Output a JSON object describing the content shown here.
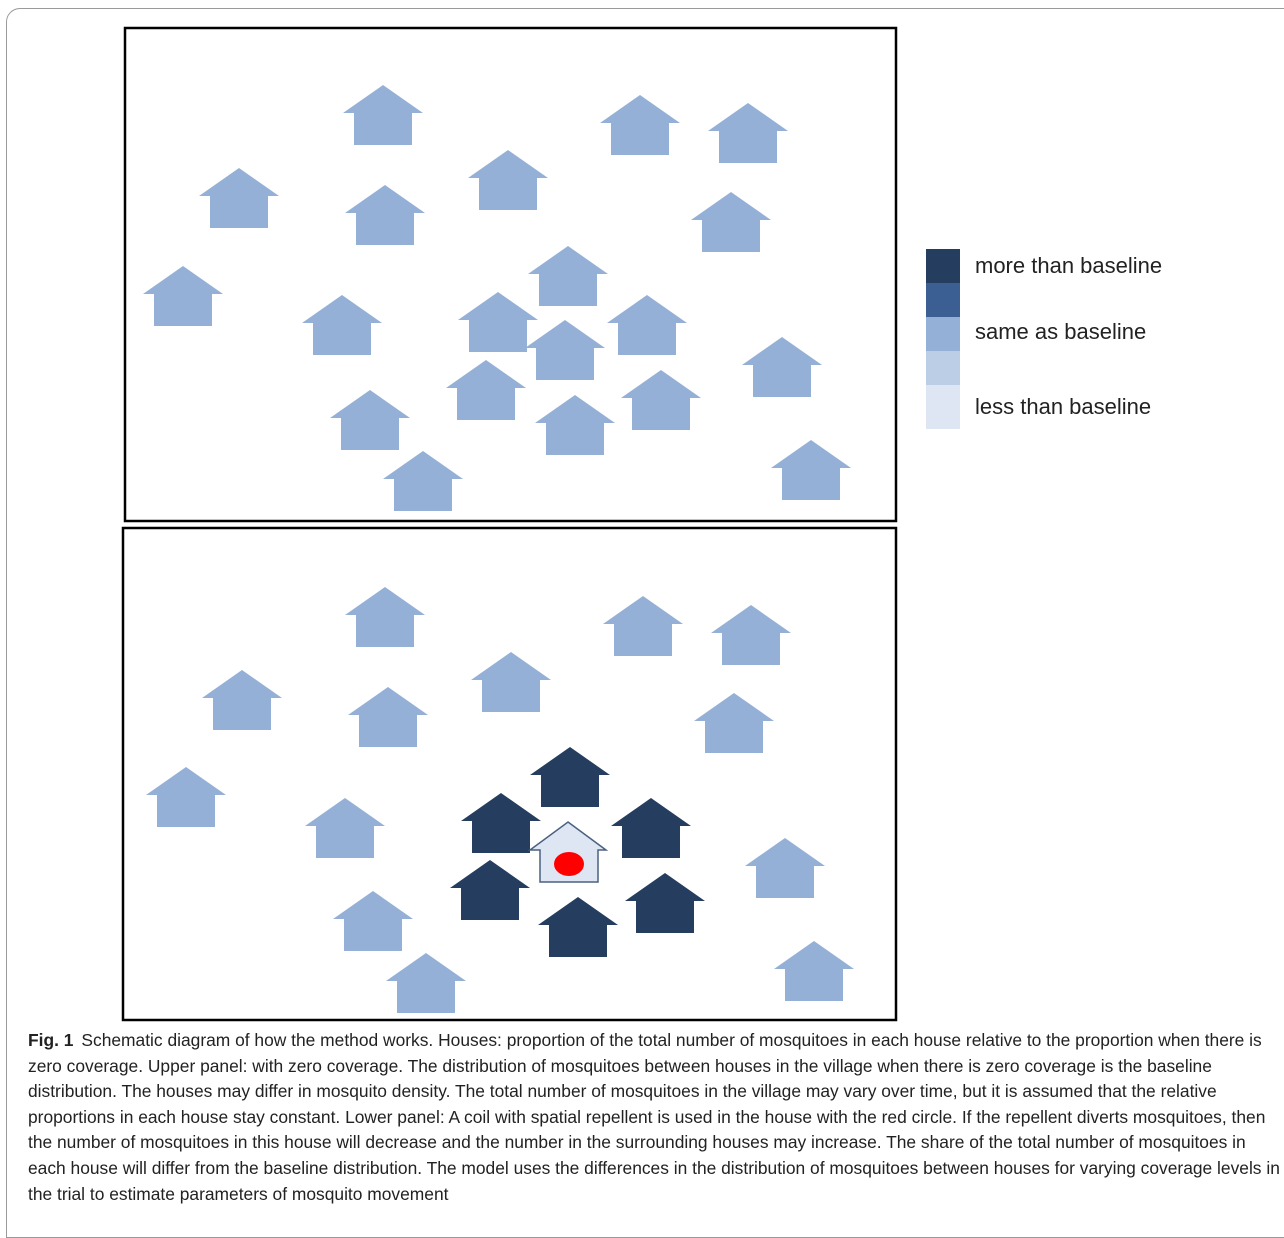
{
  "figure": {
    "legend": [
      "more than baseline",
      "same as baseline",
      "less than baseline"
    ],
    "caption": {
      "label": "Fig. 1",
      "text": "Schematic diagram of how the method works. Houses: proportion of the total number of mosquitoes in each house relative to the proportion when there is zero coverage. Upper panel: with zero coverage. The distribution of mosquitoes between houses in the village when there is zero coverage is the baseline distribution. The houses may differ in mosquito density. The total number of mosquitoes in the village may vary over time, but it is assumed that the relative proportions in each house stay constant. Lower panel: A coil with spatial repellent is used in the house with the red circle. If the repellent diverts mosquitoes, then the number of mosquitoes in this house will decrease and the number in the surrounding houses may increase. The share of the total number of mosquitoes in each house will differ from the baseline distribution. The model uses the differences in the distribution of mosquitoes between houses for varying coverage levels in the trial to estimate parameters of mosquito movement"
    }
  }
}
